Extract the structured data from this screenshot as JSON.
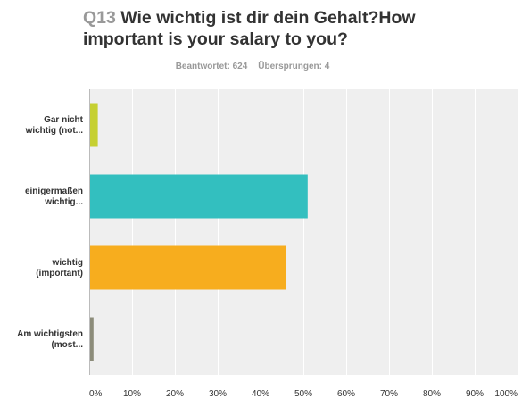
{
  "question": {
    "number": "Q13",
    "text": "Wie wichtig ist dir dein Gehalt?How\nimportant is your salary to you?"
  },
  "stats": {
    "answered": "Beantwortet: 624",
    "skipped": "Übersprungen: 4"
  },
  "chart_data": {
    "type": "bar",
    "orientation": "horizontal",
    "categories": [
      [
        "Gar nicht",
        "wichtig (not..."
      ],
      [
        "einigermaßen",
        "wichtig..."
      ],
      [
        "wichtig",
        "(important)"
      ],
      [
        "Am wichtigsten",
        "(most..."
      ]
    ],
    "values": [
      2,
      51,
      46,
      1
    ],
    "colors": [
      "#c6d031",
      "#33bfbf",
      "#f7ad1e",
      "#8c8c7a"
    ],
    "xticks": [
      "0%",
      "10%",
      "20%",
      "30%",
      "40%",
      "50%",
      "60%",
      "70%",
      "80%",
      "90%",
      "100%"
    ],
    "xlim": [
      0,
      100
    ],
    "grid": true,
    "plot_background": "#efefef",
    "grid_color": "#ffffff"
  }
}
